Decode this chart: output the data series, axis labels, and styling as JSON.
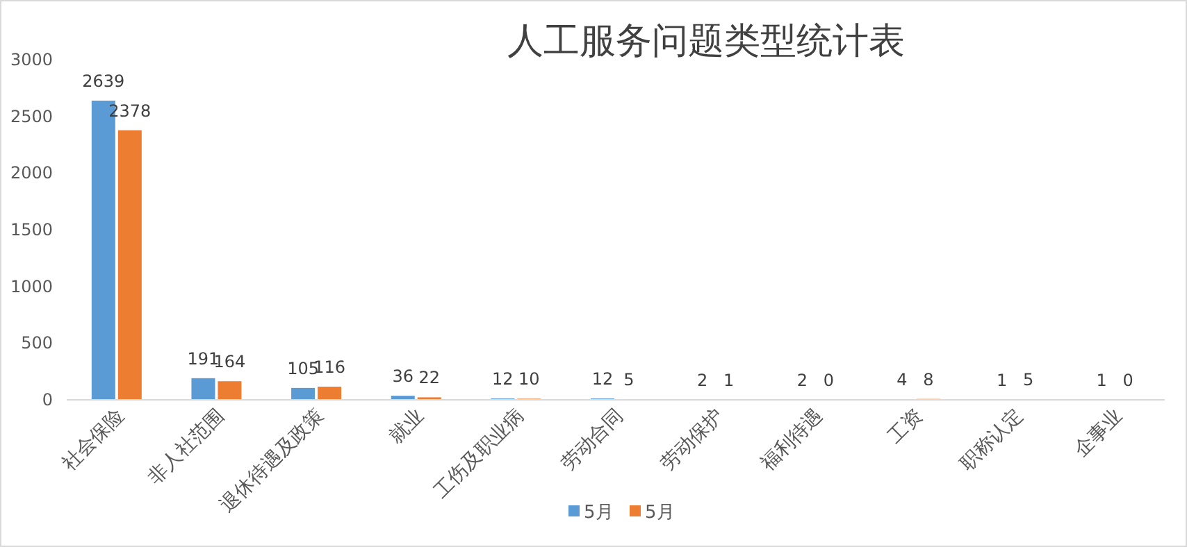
{
  "chart_data": {
    "type": "bar",
    "title": "人工服务问题类型统计表",
    "categories": [
      "社会保险",
      "非人社范围",
      "退休待遇及政策",
      "就业",
      "工伤及职业病",
      "劳动合同",
      "劳动保护",
      "福利待遇",
      "工资",
      "职称认定",
      "企事业"
    ],
    "series": [
      {
        "name": "5月",
        "color": "#5b9bd5",
        "values": [
          2639,
          191,
          105,
          36,
          12,
          12,
          2,
          2,
          4,
          1,
          1
        ]
      },
      {
        "name": "5月",
        "color": "#ed7d31",
        "values": [
          2378,
          164,
          116,
          22,
          10,
          5,
          1,
          0,
          8,
          5,
          0
        ]
      }
    ],
    "ylim": [
      0,
      3000
    ],
    "yticks": [
      0,
      500,
      1000,
      1500,
      2000,
      2500,
      3000
    ],
    "data_labels": true,
    "legend": "bottom"
  }
}
